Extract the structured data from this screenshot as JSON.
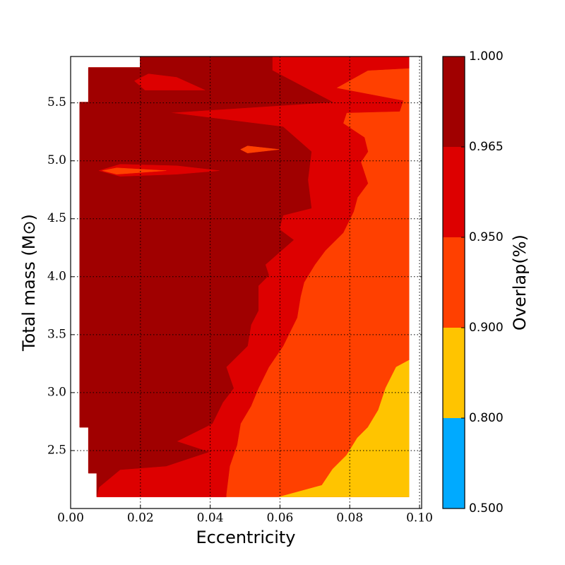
{
  "chart_data": {
    "type": "contour",
    "x_label": "Eccentricity",
    "y_label": "Total mass (M⊙)",
    "colorbar_label": "Overlap(%)",
    "xlim": [
      0,
      0.1006
    ],
    "ylim": [
      2.0,
      5.9
    ],
    "xticks": [
      {
        "value": 0,
        "label": "0.00"
      },
      {
        "value": 0.02,
        "label": "0.02"
      },
      {
        "value": 0.04,
        "label": "0.04"
      },
      {
        "value": 0.06,
        "label": "0.06"
      },
      {
        "value": 0.08,
        "label": "0.08"
      },
      {
        "value": 0.1,
        "label": "0.10"
      }
    ],
    "yticks": [
      2.5,
      {
        "value": 3,
        "label": "3.0"
      },
      3.5,
      {
        "value": 4,
        "label": "4.0"
      },
      4.5,
      {
        "value": 5,
        "label": "5.0"
      },
      5.5
    ],
    "grid": true,
    "levels": [
      0.5,
      0.8,
      0.9,
      0.95,
      0.965,
      1.0
    ],
    "colors": [
      "#00aaff",
      "#ffc400",
      "#ff4000",
      "#dd0000",
      "#a00000"
    ],
    "colorbar_ticks": [
      {
        "value": 0.5,
        "label": "0.500"
      },
      {
        "value": 0.8,
        "label": "0.800"
      },
      {
        "value": 0.9,
        "label": "0.900"
      },
      {
        "value": 0.95,
        "label": "0.950"
      },
      {
        "value": 0.965,
        "label": "0.965"
      },
      {
        "value": 1.0,
        "label": "1.000"
      }
    ],
    "regions": [
      {
        "band": 2,
        "points": [
          [
            0.0199,
            5.9
          ],
          [
            0.097,
            5.9
          ],
          [
            0.097,
            2.1
          ],
          [
            0.0075,
            2.1
          ],
          [
            0.0075,
            2.305
          ],
          [
            0.0051,
            2.305
          ],
          [
            0.0051,
            2.701
          ],
          [
            0.0026,
            2.701
          ],
          [
            0.0026,
            5.506
          ],
          [
            0.0051,
            5.506
          ],
          [
            0.0051,
            5.805
          ],
          [
            0.0199,
            5.805
          ]
        ]
      },
      {
        "band": 1,
        "points": [
          [
            0.097,
            3.28
          ],
          [
            0.0933,
            3.22
          ],
          [
            0.0903,
            3.04
          ],
          [
            0.0882,
            2.85
          ],
          [
            0.0852,
            2.7
          ],
          [
            0.0822,
            2.61
          ],
          [
            0.0791,
            2.46
          ],
          [
            0.0751,
            2.34
          ],
          [
            0.072,
            2.2
          ],
          [
            0.0598,
            2.1
          ],
          [
            0.097,
            2.1
          ]
        ]
      },
      {
        "band": 3,
        "points": [
          [
            0.0199,
            5.9
          ],
          [
            0.097,
            5.9
          ],
          [
            0.097,
            5.799
          ],
          [
            0.0852,
            5.78
          ],
          [
            0.0761,
            5.628
          ],
          [
            0.0953,
            5.518
          ],
          [
            0.0943,
            5.427
          ],
          [
            0.0791,
            5.415
          ],
          [
            0.0781,
            5.323
          ],
          [
            0.0842,
            5.201
          ],
          [
            0.0852,
            5.079
          ],
          [
            0.0832,
            4.988
          ],
          [
            0.0852,
            4.805
          ],
          [
            0.0822,
            4.683
          ],
          [
            0.0811,
            4.561
          ],
          [
            0.0781,
            4.378
          ],
          [
            0.073,
            4.226
          ],
          [
            0.07,
            4.104
          ],
          [
            0.0669,
            3.951
          ],
          [
            0.0659,
            3.829
          ],
          [
            0.0649,
            3.646
          ],
          [
            0.0609,
            3.402
          ],
          [
            0.0568,
            3.22
          ],
          [
            0.0538,
            3.037
          ],
          [
            0.0517,
            2.884
          ],
          [
            0.0487,
            2.732
          ],
          [
            0.0477,
            2.549
          ],
          [
            0.0456,
            2.366
          ],
          [
            0.0446,
            2.122
          ],
          [
            0.0446,
            2.1
          ],
          [
            0.0075,
            2.1
          ],
          [
            0.0075,
            2.305
          ],
          [
            0.0051,
            2.305
          ],
          [
            0.0051,
            2.701
          ],
          [
            0.0026,
            2.701
          ],
          [
            0.0026,
            5.506
          ],
          [
            0.0051,
            5.506
          ],
          [
            0.0051,
            5.805
          ],
          [
            0.0199,
            5.805
          ]
        ]
      },
      {
        "band": 4,
        "points": [
          [
            0.0199,
            5.9
          ],
          [
            0.0578,
            5.9
          ],
          [
            0.0578,
            5.78
          ],
          [
            0.0751,
            5.506
          ],
          [
            0.0284,
            5.415
          ],
          [
            0.0609,
            5.293
          ],
          [
            0.069,
            5.079
          ],
          [
            0.068,
            4.835
          ],
          [
            0.069,
            4.591
          ],
          [
            0.0609,
            4.53
          ],
          [
            0.0598,
            4.409
          ],
          [
            0.0639,
            4.317
          ],
          [
            0.0558,
            4.104
          ],
          [
            0.0568,
            4.012
          ],
          [
            0.0538,
            3.921
          ],
          [
            0.0538,
            3.707
          ],
          [
            0.0517,
            3.585
          ],
          [
            0.0507,
            3.402
          ],
          [
            0.0446,
            3.22
          ],
          [
            0.0467,
            3.037
          ],
          [
            0.0436,
            2.915
          ],
          [
            0.0406,
            2.732
          ],
          [
            0.0304,
            2.579
          ],
          [
            0.0396,
            2.488
          ],
          [
            0.0274,
            2.366
          ],
          [
            0.0142,
            2.335
          ],
          [
            0.0081,
            2.183
          ],
          [
            0.0075,
            2.1
          ],
          [
            0.0075,
            2.305
          ],
          [
            0.0051,
            2.305
          ],
          [
            0.0051,
            2.701
          ],
          [
            0.0026,
            2.701
          ],
          [
            0.0026,
            5.506
          ],
          [
            0.0051,
            5.506
          ],
          [
            0.0051,
            5.805
          ],
          [
            0.0199,
            5.805
          ]
        ]
      },
      {
        "band": 3,
        "points": [
          [
            0.0183,
            5.689
          ],
          [
            0.0223,
            5.75
          ],
          [
            0.0304,
            5.72
          ],
          [
            0.0385,
            5.61
          ],
          [
            0.0284,
            5.61
          ],
          [
            0.0213,
            5.61
          ]
        ]
      },
      {
        "band": 3,
        "points": [
          [
            0.0081,
            4.915
          ],
          [
            0.0142,
            4.97
          ],
          [
            0.0304,
            4.957
          ],
          [
            0.0426,
            4.915
          ],
          [
            0.0304,
            4.884
          ],
          [
            0.0142,
            4.866
          ]
        ]
      },
      {
        "band": 2,
        "points": [
          [
            0.0091,
            4.915
          ],
          [
            0.0132,
            4.939
          ],
          [
            0.0274,
            4.915
          ],
          [
            0.0132,
            4.884
          ]
        ]
      },
      {
        "band": 2,
        "points": [
          [
            0.0487,
            5.098
          ],
          [
            0.0507,
            5.128
          ],
          [
            0.0598,
            5.098
          ],
          [
            0.0507,
            5.067
          ]
        ]
      }
    ]
  }
}
